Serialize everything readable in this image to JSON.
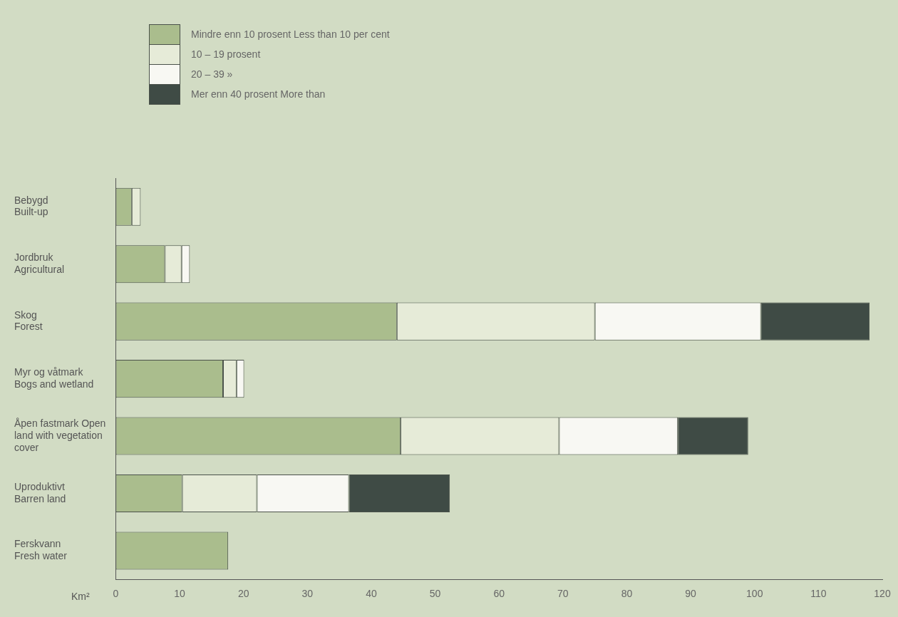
{
  "chart_data": {
    "type": "bar",
    "orientation": "horizontal",
    "stacked": true,
    "categories": [
      "Bebygd\nBuilt-up",
      "Jordbruk\nAgricultural",
      "Skog\nForest",
      "Myr og våtmark\nBogs and wetland",
      "Åpen fastmark Open\nland with vegetation\ncover",
      "Uproduktivt\nBarren land",
      "Ferskvann\nFresh water"
    ],
    "series": [
      {
        "name": "Mindre enn 10 prosent  Less than 10 per cent",
        "color": "#aabd8d",
        "values": [
          2.5,
          7.7,
          44,
          16.8,
          44.6,
          10.4,
          17.6
        ]
      },
      {
        "name": "10 – 19 prosent",
        "color": "#e6ebd8",
        "values": [
          1.4,
          2.6,
          31,
          2.1,
          24.8,
          11.7,
          null
        ]
      },
      {
        "name": "20 – 39   »",
        "color": "#f8f8f3",
        "values": [
          null,
          1.3,
          26,
          1.2,
          18.6,
          14.4,
          null
        ]
      },
      {
        "name": "Mer enn 40 prosent  More than",
        "color": "#3f4b45",
        "values": [
          null,
          null,
          17,
          null,
          11,
          15.8,
          null
        ]
      }
    ],
    "xlabel": "Km²",
    "xlim": [
      0,
      120
    ],
    "xticks": [
      0,
      10,
      20,
      30,
      40,
      50,
      60,
      70,
      80,
      90,
      100,
      110,
      120
    ],
    "grid": false,
    "legend": "top left"
  }
}
